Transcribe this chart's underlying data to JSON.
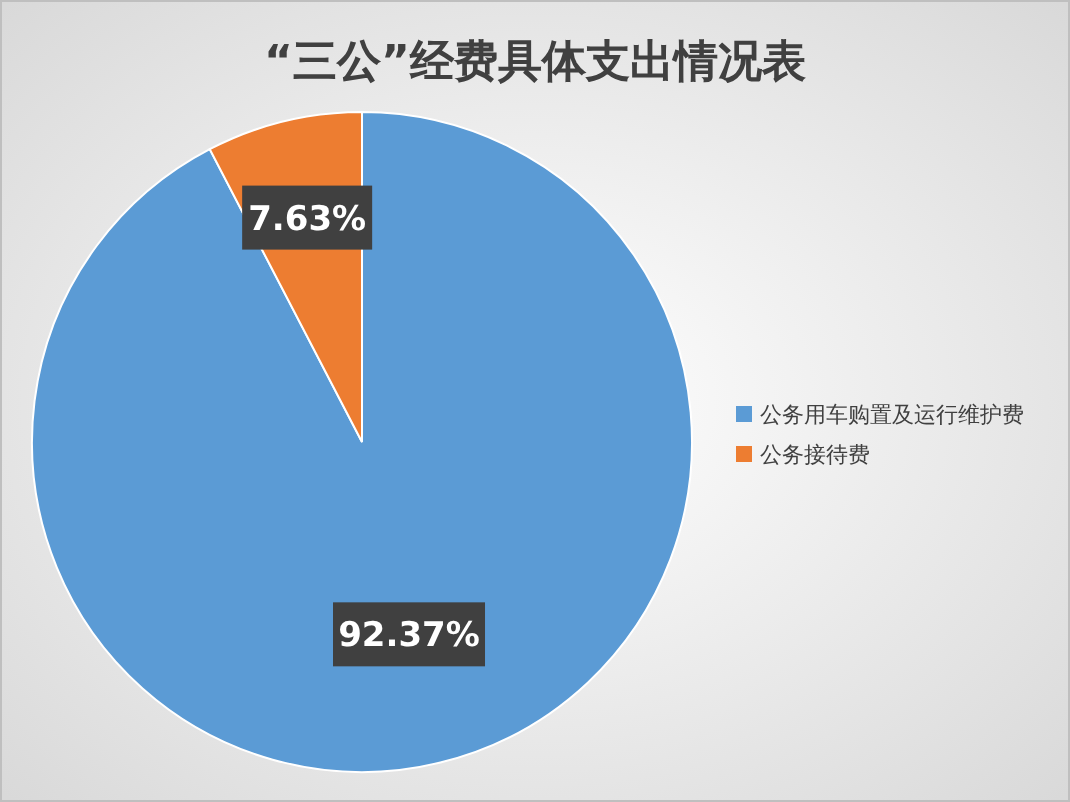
{
  "chart_data": {
    "type": "pie",
    "title": "“三公”经费具体支出情况表",
    "categories": [
      "公务用车购置及运行维护费",
      "公务接待费"
    ],
    "values": [
      92.37,
      7.63
    ],
    "colors": [
      "#5b9bd5",
      "#ed7d31"
    ],
    "value_labels": [
      "92.37%",
      "7.63%"
    ],
    "legend": "right"
  }
}
